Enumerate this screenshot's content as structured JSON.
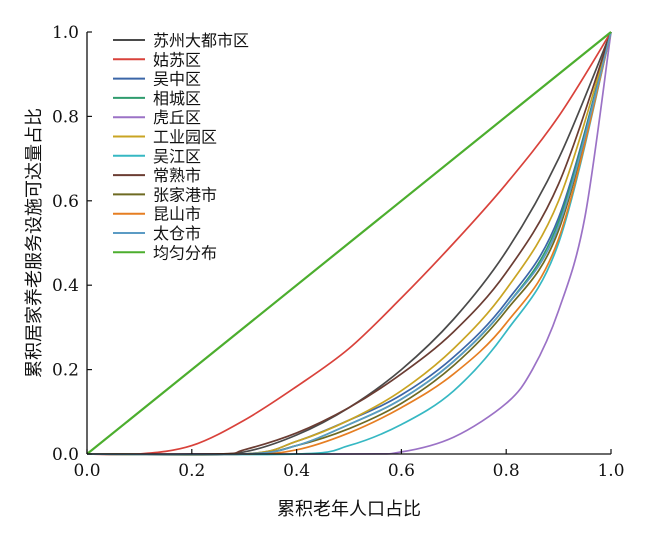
{
  "chart_data": {
    "type": "line",
    "title": "",
    "xlabel": "累积老年人口占比",
    "ylabel": "累积居家养老服务设施可达量占比",
    "xlim": [
      0,
      1
    ],
    "ylim": [
      0,
      1
    ],
    "xticks": [
      "0.0",
      "0.2",
      "0.4",
      "0.6",
      "0.8",
      "1.0"
    ],
    "yticks": [
      "0.0",
      "0.2",
      "0.4",
      "0.6",
      "0.8",
      "1.0"
    ],
    "grid": false,
    "legend_position": "top-left",
    "series": [
      {
        "name": "苏州大都市区",
        "color": "#4a4a4a",
        "x": [
          0,
          0.2,
          0.3,
          0.4,
          0.5,
          0.6,
          0.7,
          0.8,
          0.9,
          1.0
        ],
        "y": [
          0,
          0.0,
          0.005,
          0.045,
          0.11,
          0.2,
          0.32,
          0.48,
          0.7,
          1.0
        ]
      },
      {
        "name": "姑苏区",
        "color": "#d9423b",
        "x": [
          0,
          0.1,
          0.2,
          0.3,
          0.4,
          0.5,
          0.6,
          0.7,
          0.8,
          0.9,
          1.0
        ],
        "y": [
          0,
          0.0,
          0.02,
          0.08,
          0.16,
          0.25,
          0.37,
          0.5,
          0.64,
          0.8,
          1.0
        ]
      },
      {
        "name": "吴中区",
        "color": "#3b66a8",
        "x": [
          0,
          0.3,
          0.4,
          0.5,
          0.6,
          0.7,
          0.8,
          0.9,
          1.0
        ],
        "y": [
          0,
          0.0,
          0.03,
          0.08,
          0.14,
          0.23,
          0.36,
          0.56,
          1.0
        ]
      },
      {
        "name": "相城区",
        "color": "#2f9c6e",
        "x": [
          0,
          0.3,
          0.4,
          0.5,
          0.6,
          0.7,
          0.8,
          0.9,
          1.0
        ],
        "y": [
          0,
          0.0,
          0.02,
          0.07,
          0.13,
          0.22,
          0.35,
          0.55,
          1.0
        ]
      },
      {
        "name": "虎丘区",
        "color": "#9b72c6",
        "x": [
          0,
          0.5,
          0.6,
          0.7,
          0.8,
          0.85,
          0.9,
          0.95,
          1.0
        ],
        "y": [
          0,
          0.0,
          0.005,
          0.04,
          0.12,
          0.2,
          0.34,
          0.56,
          1.0
        ]
      },
      {
        "name": "工业园区",
        "color": "#c9a423",
        "x": [
          0,
          0.3,
          0.4,
          0.5,
          0.6,
          0.7,
          0.8,
          0.9,
          1.0
        ],
        "y": [
          0,
          0.0,
          0.03,
          0.08,
          0.15,
          0.25,
          0.39,
          0.6,
          1.0
        ]
      },
      {
        "name": "吴江区",
        "color": "#36b8c3",
        "x": [
          0,
          0.4,
          0.5,
          0.6,
          0.7,
          0.8,
          0.9,
          1.0
        ],
        "y": [
          0,
          0.0,
          0.02,
          0.07,
          0.15,
          0.29,
          0.5,
          1.0
        ]
      },
      {
        "name": "常熟市",
        "color": "#6b3d33",
        "x": [
          0,
          0.25,
          0.3,
          0.4,
          0.5,
          0.6,
          0.7,
          0.8,
          0.9,
          1.0
        ],
        "y": [
          0,
          0.0,
          0.01,
          0.05,
          0.11,
          0.19,
          0.29,
          0.43,
          0.64,
          1.0
        ]
      },
      {
        "name": "张家港市",
        "color": "#6e6a22",
        "x": [
          0,
          0.3,
          0.4,
          0.5,
          0.6,
          0.7,
          0.8,
          0.9,
          1.0
        ],
        "y": [
          0,
          0.0,
          0.02,
          0.06,
          0.12,
          0.21,
          0.34,
          0.53,
          1.0
        ]
      },
      {
        "name": "昆山市",
        "color": "#e67e22",
        "x": [
          0,
          0.3,
          0.4,
          0.5,
          0.6,
          0.7,
          0.8,
          0.9,
          1.0
        ],
        "y": [
          0,
          0.0,
          0.01,
          0.05,
          0.11,
          0.19,
          0.31,
          0.51,
          1.0
        ]
      },
      {
        "name": "太仓市",
        "color": "#5b9bc4",
        "x": [
          0,
          0.3,
          0.4,
          0.5,
          0.6,
          0.7,
          0.8,
          0.9,
          1.0
        ],
        "y": [
          0,
          0.0,
          0.02,
          0.07,
          0.13,
          0.22,
          0.35,
          0.54,
          1.0
        ]
      },
      {
        "name": "均匀分布",
        "color": "#4cae2e",
        "x": [
          0,
          1.0
        ],
        "y": [
          0,
          1.0
        ]
      }
    ]
  }
}
